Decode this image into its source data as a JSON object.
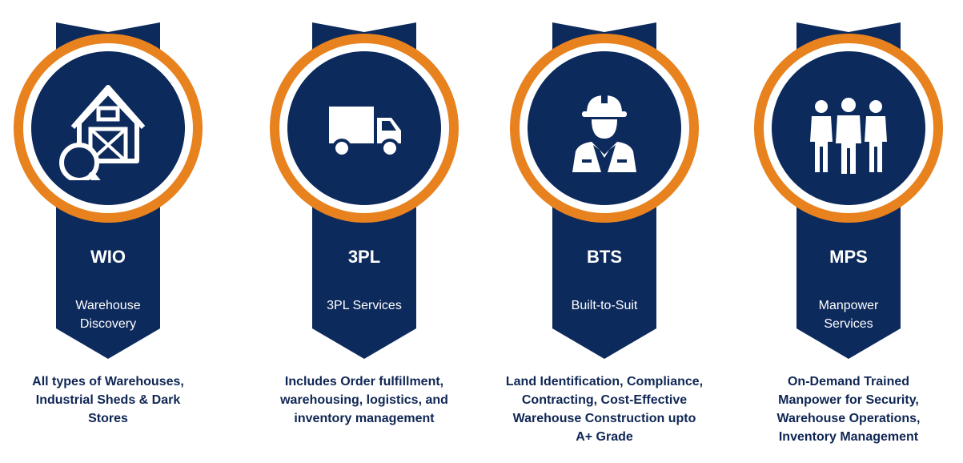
{
  "colors": {
    "navy": "#0d2a5c",
    "orange": "#e8821f",
    "ring_gap": "#ffffff",
    "text_dark": "#0f2654"
  },
  "cards": [
    {
      "code": "WIO",
      "subtitle": "Warehouse Discovery",
      "description": "All types of Warehouses, Industrial Sheds & Dark Stores",
      "icon": "warehouse-search-icon"
    },
    {
      "code": "3PL",
      "subtitle": "3PL Services",
      "description": "Includes Order fulfillment, warehousing, logistics, and inventory management",
      "icon": "truck-icon"
    },
    {
      "code": "BTS",
      "subtitle": "Built-to-Suit",
      "description": "Land Identification, Compliance, Contracting, Cost-Effective Warehouse Construction upto A+ Grade",
      "icon": "construction-worker-icon"
    },
    {
      "code": "MPS",
      "subtitle": "Manpower Services",
      "description": "On-Demand Trained Manpower for Security, Warehouse Operations, Inventory Management",
      "icon": "people-group-icon"
    }
  ]
}
